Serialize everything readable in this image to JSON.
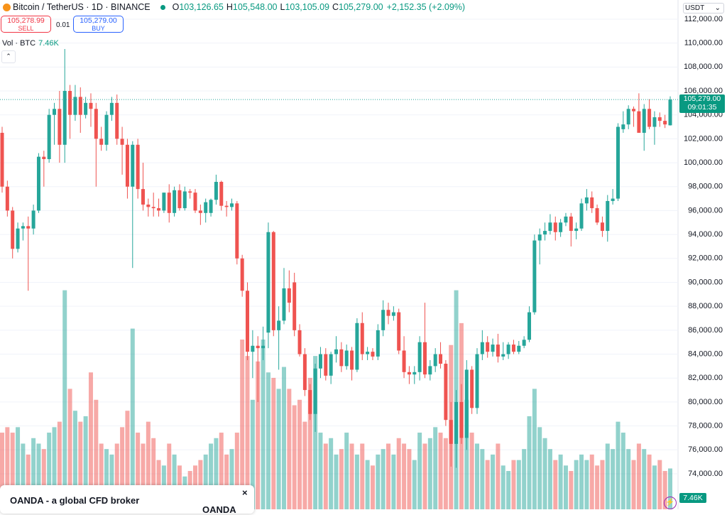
{
  "header": {
    "symbol": "Bitcoin / TetherUS · 1D · BINANCE",
    "o_key": "O",
    "open": "103,126.65",
    "h_key": "H",
    "high": "105,548.00",
    "l_key": "L",
    "low": "103,105.09",
    "c_key": "C",
    "close": "105,279.00",
    "change": "+2,152.35 (+2.09%)"
  },
  "trade": {
    "sell_price": "105,278.99",
    "sell": "SELL",
    "spread": "0.01",
    "buy_price": "105,279.00",
    "buy": "BUY"
  },
  "volume_legend": {
    "label": "Vol · BTC",
    "value": "7.46K"
  },
  "currency": "USDT",
  "price_badge": {
    "price": "105,279.00",
    "countdown": "09:01:35"
  },
  "ad": {
    "text": "OANDA - a global CFD broker",
    "logo": "OANDA",
    "close": "×"
  },
  "chart_data": {
    "type": "candlestick",
    "up_color": "#26a69a",
    "down_color": "#ef5350",
    "ylim": [
      71030,
      113600
    ],
    "yticks": [
      {
        "value": 112000,
        "label": "112,000.00"
      },
      {
        "value": 110000,
        "label": "110,000.00"
      },
      {
        "value": 108000,
        "label": "108,000.00"
      },
      {
        "value": 106000,
        "label": "106,000.00"
      },
      {
        "value": 104000,
        "label": "104,000.00"
      },
      {
        "value": 102000,
        "label": "102,000.00"
      },
      {
        "value": 100000,
        "label": "100,000.00"
      },
      {
        "value": 98000,
        "label": "98,000.00"
      },
      {
        "value": 96000,
        "label": "96,000.00"
      },
      {
        "value": 94000,
        "label": "94,000.00"
      },
      {
        "value": 92000,
        "label": "92,000.00"
      },
      {
        "value": 90000,
        "label": "90,000.00"
      },
      {
        "value": 88000,
        "label": "88,000.00"
      },
      {
        "value": 86000,
        "label": "86,000.00"
      },
      {
        "value": 84000,
        "label": "84,000.00"
      },
      {
        "value": 82000,
        "label": "82,000.00"
      },
      {
        "value": 80000,
        "label": "80,000.00"
      },
      {
        "value": 78000,
        "label": "78,000.00"
      },
      {
        "value": 76000,
        "label": "76,000.00"
      },
      {
        "value": 74000,
        "label": "74,000.00"
      }
    ],
    "grid": true,
    "open": [
      102500,
      98000,
      96000,
      92800,
      94500,
      94700,
      94500,
      96000,
      100500,
      100300,
      104000,
      104500,
      101500,
      106000,
      104000,
      105500,
      104000,
      105000,
      104500,
      102000,
      101500,
      104000,
      105000,
      102000,
      101500,
      98000,
      101500,
      97800,
      96500,
      96300,
      96200,
      96000,
      97500,
      95800,
      97700,
      96200,
      97600,
      97500,
      96000,
      95800,
      95800,
      96900,
      98400,
      96400,
      96300,
      96600,
      92000,
      89300,
      84200,
      84700,
      84500,
      85800,
      94200,
      86000,
      86800,
      89500,
      90000,
      86000,
      84000,
      81000,
      79000,
      82800,
      84000,
      82200,
      84000,
      84400,
      83000,
      84300,
      82700,
      86600,
      84000,
      84200,
      83800,
      86000,
      87700,
      87200,
      87500,
      84300,
      82500,
      82300,
      82500,
      85000,
      82300,
      83000,
      84000,
      83200,
      78500,
      76500,
      80000,
      77000,
      82700,
      79500,
      84000,
      85000,
      84200,
      84800,
      83800,
      84000,
      84800,
      84200,
      84700,
      85200,
      87500,
      93500,
      94000,
      94300,
      95000,
      94200,
      95000,
      95500,
      94300,
      94500,
      96600,
      97100,
      96200,
      95000,
      94300,
      96800,
      97000,
      102800,
      103200,
      104500,
      104300,
      102500,
      104500,
      103000,
      103800,
      103500,
      103126.65
    ],
    "high": [
      103000,
      98500,
      96300,
      95000,
      95000,
      95500,
      96500,
      100800,
      101000,
      104500,
      105000,
      106000,
      109500,
      106500,
      106500,
      106300,
      105500,
      105800,
      105000,
      103000,
      104300,
      105500,
      105700,
      103000,
      102000,
      101800,
      102000,
      100000,
      97000,
      97500,
      97000,
      97500,
      98200,
      98000,
      98200,
      98000,
      97800,
      97800,
      96500,
      97000,
      97000,
      99000,
      98500,
      96800,
      97000,
      96800,
      92300,
      90000,
      86000,
      85500,
      86300,
      95000,
      94300,
      88000,
      91200,
      91000,
      90800,
      86500,
      84500,
      81500,
      83200,
      84600,
      84500,
      84200,
      85500,
      85000,
      84800,
      84600,
      87000,
      87500,
      84600,
      84500,
      86500,
      88500,
      88300,
      88000,
      87800,
      85500,
      83000,
      83000,
      85500,
      88300,
      83500,
      84500,
      85000,
      83500,
      80000,
      81000,
      81500,
      83500,
      83000,
      84500,
      86000,
      85500,
      85300,
      85700,
      85000,
      85000,
      85200,
      85100,
      85500,
      88000,
      94000,
      94500,
      95000,
      95700,
      95500,
      95300,
      95800,
      95800,
      95000,
      97000,
      97800,
      97600,
      96500,
      95500,
      97300,
      97800,
      103300,
      104300,
      104800,
      104700,
      105800,
      104900,
      105300,
      104300,
      104200,
      104000,
      105548
    ],
    "low": [
      97500,
      95500,
      92000,
      92500,
      93500,
      89300,
      94000,
      95800,
      98000,
      100000,
      101500,
      100000,
      100000,
      102000,
      103500,
      102500,
      103700,
      103000,
      98000,
      101000,
      101000,
      103500,
      101500,
      99000,
      97000,
      91200,
      97000,
      96000,
      95500,
      95500,
      95500,
      95800,
      95000,
      95500,
      96000,
      96000,
      97000,
      95800,
      94800,
      95000,
      95500,
      96500,
      96000,
      95500,
      96000,
      91500,
      88800,
      83500,
      82000,
      80000,
      83500,
      84500,
      85500,
      82700,
      86500,
      87500,
      85500,
      83800,
      80500,
      78500,
      77500,
      82000,
      81800,
      81500,
      83300,
      82500,
      82700,
      81800,
      82500,
      83500,
      83500,
      83500,
      83500,
      85500,
      86500,
      86800,
      84000,
      82000,
      81500,
      81500,
      81800,
      82000,
      81800,
      82500,
      82800,
      78000,
      74600,
      74500,
      76500,
      76000,
      79000,
      79000,
      83500,
      83700,
      83800,
      83300,
      83500,
      83600,
      84000,
      84000,
      84500,
      85000,
      87300,
      91500,
      93500,
      94000,
      93500,
      93800,
      94700,
      93000,
      93600,
      94300,
      96000,
      95800,
      94800,
      93800,
      93400,
      96500,
      96800,
      102500,
      102800,
      103000,
      102500,
      101000,
      102800,
      101500,
      103000,
      102900,
      103105.09
    ],
    "close": [
      98000,
      96000,
      92800,
      94500,
      94700,
      94500,
      96000,
      100500,
      100300,
      104000,
      104500,
      101500,
      106000,
      104000,
      105500,
      104000,
      105000,
      104500,
      102000,
      101500,
      104000,
      105000,
      102000,
      101500,
      98000,
      101500,
      97800,
      96500,
      96300,
      96200,
      96000,
      97500,
      95800,
      97700,
      96200,
      97600,
      97500,
      96000,
      95800,
      96700,
      96900,
      98400,
      96400,
      96300,
      96600,
      92000,
      89300,
      84200,
      84700,
      84500,
      84700,
      94200,
      86000,
      86800,
      89500,
      88300,
      86000,
      84000,
      81000,
      79000,
      82800,
      84000,
      82200,
      84000,
      84400,
      83000,
      84300,
      82700,
      86600,
      84000,
      84200,
      83800,
      86000,
      87700,
      87200,
      87500,
      84300,
      82500,
      82300,
      82500,
      85000,
      82300,
      83000,
      84000,
      83200,
      78500,
      76500,
      80000,
      77000,
      82700,
      79500,
      84000,
      85000,
      84200,
      84800,
      83800,
      84000,
      84800,
      84200,
      84700,
      85200,
      87500,
      93500,
      94000,
      94300,
      95000,
      94200,
      95000,
      95500,
      94300,
      94500,
      96600,
      97100,
      96200,
      95000,
      94300,
      96800,
      97000,
      103000,
      103200,
      104500,
      104300,
      102500,
      104500,
      103000,
      103800,
      103500,
      103200,
      105279
    ],
    "volume": [
      14,
      15,
      14,
      15,
      12,
      10,
      13,
      12,
      11,
      14,
      15,
      16,
      40,
      22,
      18,
      16,
      17,
      25,
      20,
      12,
      11,
      10,
      12,
      15,
      18,
      33,
      14,
      12,
      16,
      13,
      9,
      8,
      12,
      10,
      8,
      6,
      7,
      8,
      9,
      10,
      12,
      13,
      14,
      10,
      11,
      14,
      31,
      28,
      20,
      27,
      31,
      25,
      24,
      22,
      26,
      22,
      19,
      20,
      16,
      24,
      28,
      14,
      12,
      13,
      10,
      11,
      14,
      12,
      10,
      12,
      9,
      8,
      10,
      11,
      12,
      10,
      13,
      12,
      11,
      9,
      14,
      12,
      13,
      15,
      14,
      13,
      30,
      40,
      34,
      20,
      14,
      12,
      11,
      9,
      10,
      12,
      8,
      7,
      9,
      9,
      11,
      17,
      22,
      15,
      13,
      11,
      9,
      10,
      8,
      7,
      9,
      10,
      9,
      10,
      8,
      9,
      12,
      11,
      16,
      14,
      11,
      9,
      12,
      11,
      10,
      8,
      9,
      7,
      7.46
    ],
    "volume_ylim": [
      0,
      93
    ]
  }
}
